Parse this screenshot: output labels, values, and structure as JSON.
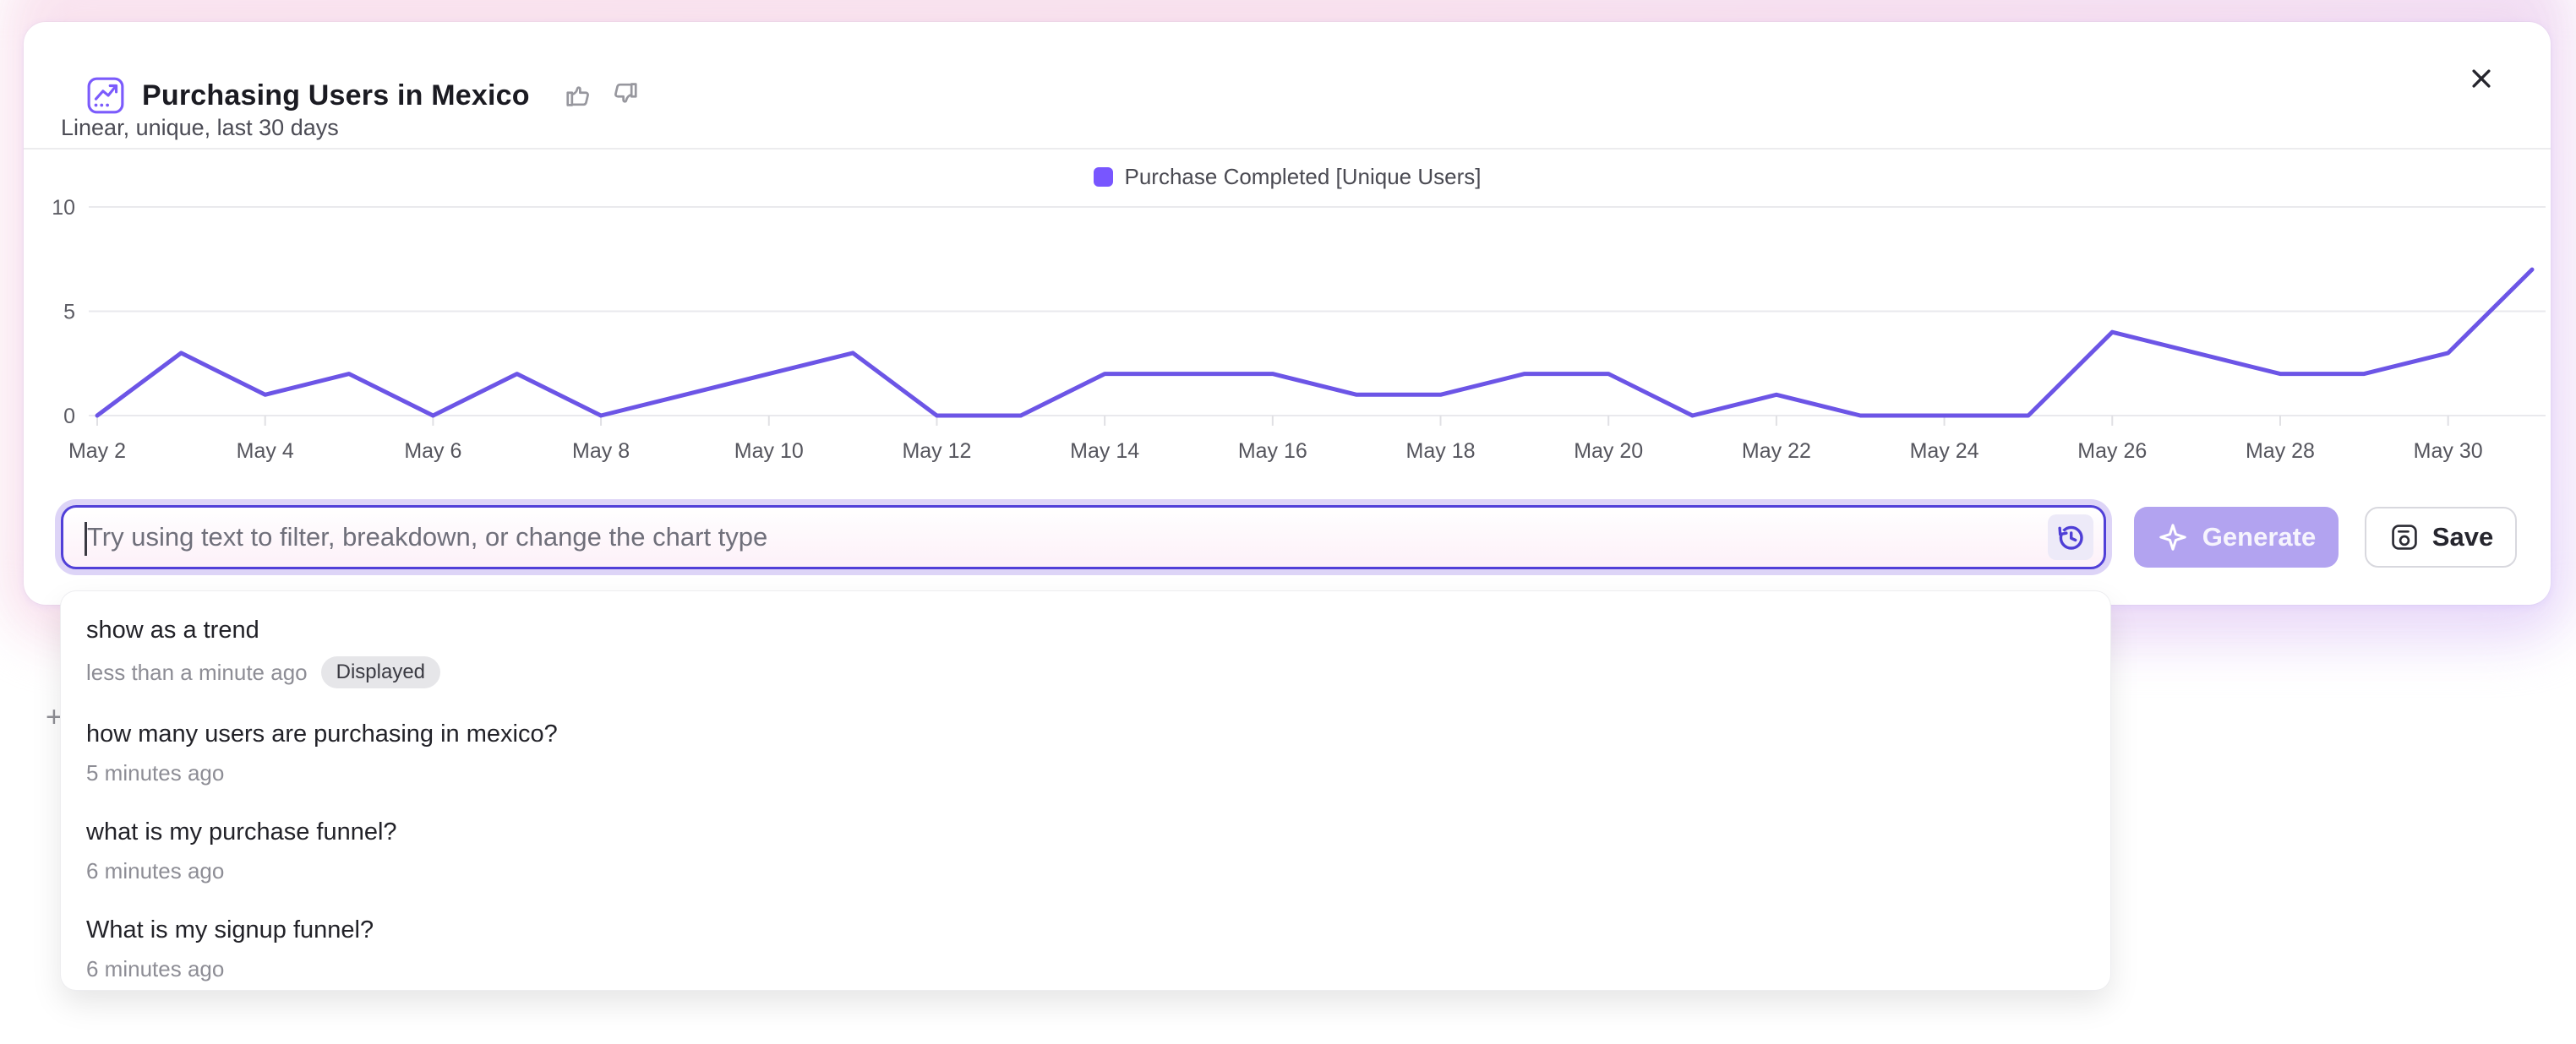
{
  "header": {
    "title": "Purchasing Users in Mexico",
    "subtitle": "Linear, unique, last 30 days"
  },
  "toolbar": {
    "placeholder": "Try using text to filter, breakdown, or change the chart type",
    "generate_label": "Generate",
    "save_label": "Save"
  },
  "history_panel": {
    "items": [
      {
        "title": "show as a trend",
        "time": "less than a minute ago",
        "badge": "Displayed"
      },
      {
        "title": "how many users are purchasing in mexico?",
        "time": "5 minutes ago"
      },
      {
        "title": "what is my purchase funnel?",
        "time": "6 minutes ago"
      },
      {
        "title": "What is my signup funnel?",
        "time": "6 minutes ago"
      }
    ]
  },
  "chart_data": {
    "type": "line",
    "title": "Purchasing Users in Mexico",
    "x": [
      "May 2",
      "May 3",
      "May 4",
      "May 5",
      "May 6",
      "May 7",
      "May 8",
      "May 9",
      "May 10",
      "May 11",
      "May 12",
      "May 13",
      "May 14",
      "May 15",
      "May 16",
      "May 17",
      "May 18",
      "May 19",
      "May 20",
      "May 21",
      "May 22",
      "May 23",
      "May 24",
      "May 25",
      "May 26",
      "May 27",
      "May 28",
      "May 29",
      "May 30",
      "May 31"
    ],
    "series": [
      {
        "name": "Purchase Completed [Unique Users]",
        "color": "#7856ff",
        "line_color": "#6c55e6",
        "values": [
          0,
          3,
          1,
          2,
          0,
          2,
          0,
          1,
          2,
          3,
          0,
          0,
          2,
          2,
          2,
          1,
          1,
          2,
          2,
          0,
          1,
          0,
          0,
          0,
          4,
          3,
          2,
          2,
          3,
          7
        ]
      }
    ],
    "xlabel": "",
    "ylabel": "",
    "yticks": [
      0,
      5,
      10
    ],
    "ylim": [
      0,
      10
    ],
    "xtick_every": 2,
    "grid": true,
    "legend_position": "top-center"
  },
  "colors": {
    "accent": "#7856ff",
    "line": "#6c55e6",
    "input_border": "#5140d8",
    "generate_bg": "#b2a3f0",
    "glow_pink": "#f8dfec",
    "badge_bg": "#e6e6e9"
  }
}
